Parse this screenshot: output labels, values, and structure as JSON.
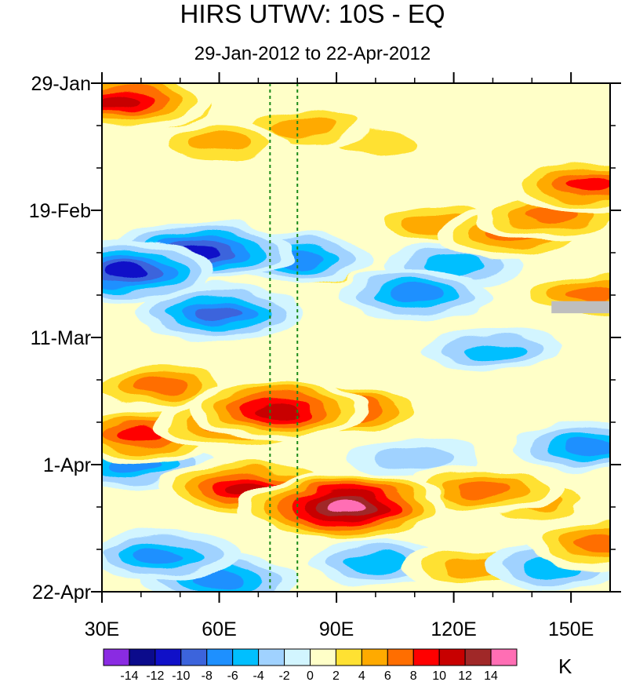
{
  "chart_data": {
    "type": "heatmap",
    "title": "HIRS UTWV: 10S - EQ",
    "subtitle": "29-Jan-2012 to 22-Apr-2012",
    "xlabel": "",
    "ylabel": "",
    "x_ticks": [
      "30E",
      "60E",
      "90E",
      "120E",
      "150E"
    ],
    "x_tick_values": [
      30,
      60,
      90,
      120,
      150
    ],
    "xlim": [
      30,
      160
    ],
    "y_ticks": [
      "29-Jan",
      "19-Feb",
      "11-Mar",
      "1-Apr",
      "22-Apr"
    ],
    "y_tick_days": [
      0,
      21,
      42,
      63,
      84
    ],
    "ylim_days": [
      0,
      84
    ],
    "units": "K",
    "colorbar_labels": [
      "-14",
      "-12",
      "-10",
      "-8",
      "-6",
      "-4",
      "-2",
      "0",
      "2",
      "4",
      "6",
      "8",
      "10",
      "12",
      "14"
    ],
    "colorbar_colors": [
      "#8a2be2",
      "#0b0b8c",
      "#1010c8",
      "#3c64dc",
      "#1e90ff",
      "#00bfff",
      "#a0d2ff",
      "#d2f5ff",
      "#ffffc8",
      "#ffe132",
      "#ffaa00",
      "#ff6e00",
      "#ff0000",
      "#c80000",
      "#a02828",
      "#ff6eb4"
    ],
    "reference_lines_lon": [
      73,
      80
    ],
    "missing_patch": {
      "lon": [
        145,
        160
      ],
      "day": [
        36,
        38
      ]
    },
    "anomaly_features": [
      {
        "lon": 34,
        "day": 3,
        "value": 11
      },
      {
        "lon": 42,
        "day": 4,
        "value": 8
      },
      {
        "lon": 82,
        "day": 7,
        "value": 5
      },
      {
        "lon": 100,
        "day": 10,
        "value": 4
      },
      {
        "lon": 60,
        "day": 10,
        "value": 5
      },
      {
        "lon": 155,
        "day": 17,
        "value": 9
      },
      {
        "lon": 135,
        "day": 25,
        "value": 7
      },
      {
        "lon": 145,
        "day": 22,
        "value": 8
      },
      {
        "lon": 115,
        "day": 23,
        "value": 5
      },
      {
        "lon": 55,
        "day": 28,
        "value": -11
      },
      {
        "lon": 36,
        "day": 31,
        "value": -12
      },
      {
        "lon": 80,
        "day": 29,
        "value": -8
      },
      {
        "lon": 110,
        "day": 35,
        "value": -7
      },
      {
        "lon": 60,
        "day": 38,
        "value": -9
      },
      {
        "lon": 120,
        "day": 30,
        "value": -5
      },
      {
        "lon": 85,
        "day": 31,
        "value": 4
      },
      {
        "lon": 155,
        "day": 35,
        "value": 7
      },
      {
        "lon": 130,
        "day": 44,
        "value": -6
      },
      {
        "lon": 45,
        "day": 50,
        "value": 8
      },
      {
        "lon": 75,
        "day": 54,
        "value": 12
      },
      {
        "lon": 65,
        "day": 56,
        "value": 10
      },
      {
        "lon": 92,
        "day": 54,
        "value": 9
      },
      {
        "lon": 40,
        "day": 58,
        "value": 9
      },
      {
        "lon": 68,
        "day": 67,
        "value": 11
      },
      {
        "lon": 92,
        "day": 70,
        "value": 15
      },
      {
        "lon": 128,
        "day": 67,
        "value": 8
      },
      {
        "lon": 140,
        "day": 69,
        "value": 6
      },
      {
        "lon": 155,
        "day": 60,
        "value": -7
      },
      {
        "lon": 145,
        "day": 80,
        "value": -6
      },
      {
        "lon": 45,
        "day": 78,
        "value": -8
      },
      {
        "lon": 38,
        "day": 63,
        "value": -7
      },
      {
        "lon": 100,
        "day": 79,
        "value": -5
      },
      {
        "lon": 125,
        "day": 80,
        "value": 5
      },
      {
        "lon": 158,
        "day": 76,
        "value": 7
      },
      {
        "lon": 110,
        "day": 62,
        "value": -4
      },
      {
        "lon": 60,
        "day": 82,
        "value": -7
      }
    ]
  }
}
